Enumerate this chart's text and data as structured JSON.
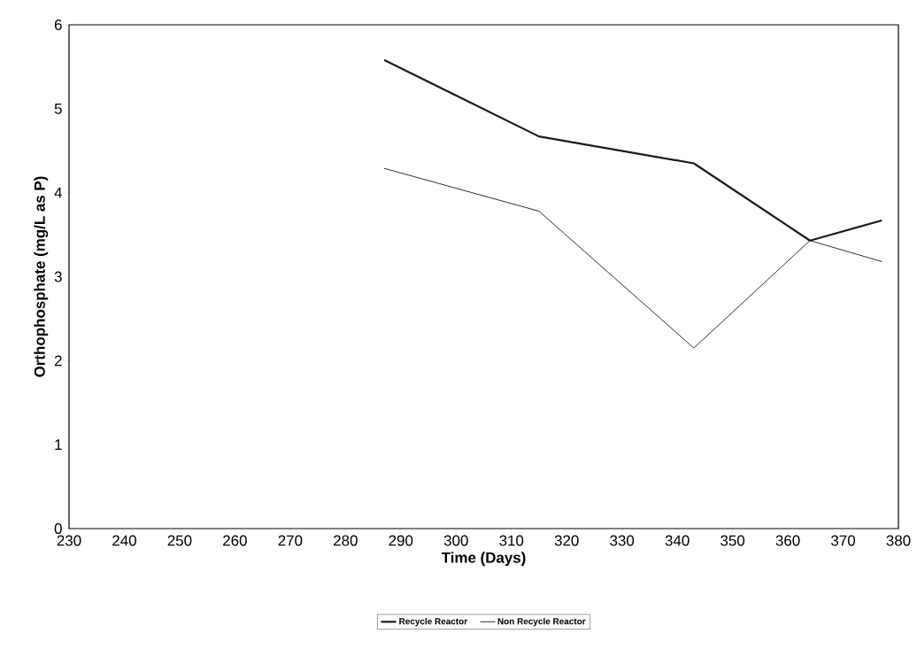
{
  "chart_data": {
    "type": "line",
    "xlabel": "Time (Days)",
    "ylabel": "Orthophosphate (mg/L as P)",
    "x": [
      287,
      315,
      343,
      364,
      377
    ],
    "series": [
      {
        "name": "Recycle Reactor",
        "color": "#1a1a1a",
        "values": [
          5.58,
          4.67,
          4.35,
          3.43,
          3.67
        ]
      },
      {
        "name": "Non Recycle Reactor",
        "color": "#1a1a1a",
        "values": [
          4.29,
          3.78,
          2.15,
          3.43,
          3.18
        ]
      }
    ],
    "xlim": [
      230,
      380
    ],
    "xticks": [
      230,
      240,
      250,
      260,
      270,
      280,
      290,
      300,
      310,
      320,
      330,
      340,
      350,
      360,
      370,
      380
    ],
    "ylim": [
      0,
      6
    ],
    "yticks": [
      0,
      1,
      2,
      3,
      4,
      5,
      6
    ],
    "grid": false,
    "legend": "bottom",
    "marker": "none",
    "line_style": "solid"
  }
}
